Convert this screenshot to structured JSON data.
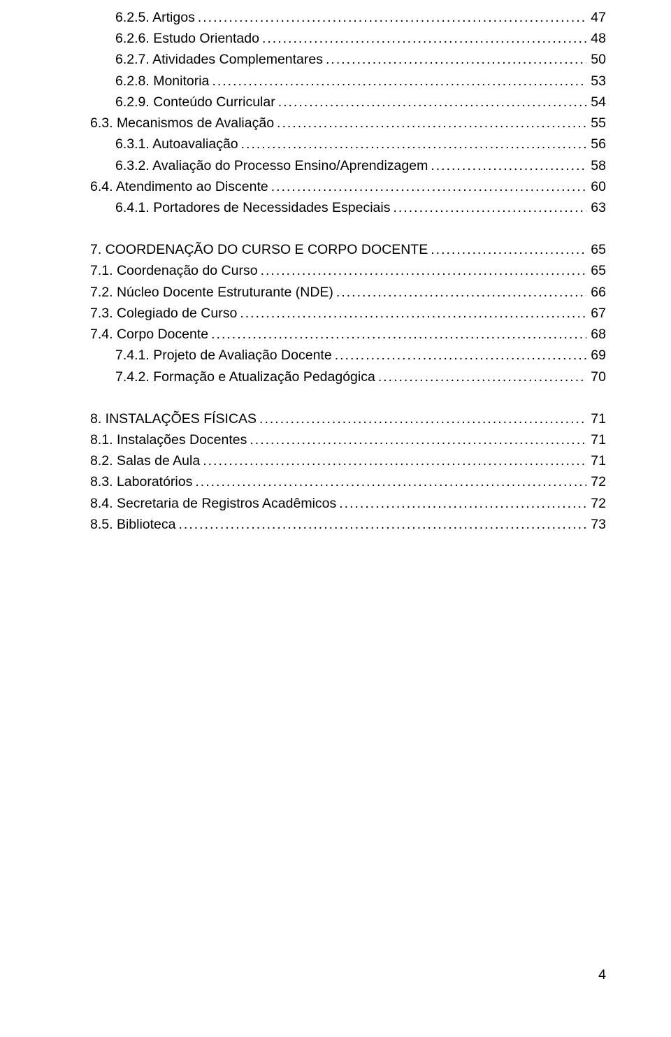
{
  "page_number": "4",
  "font_family": "Arial",
  "text_color": "#000000",
  "background_color": "#ffffff",
  "blocks": [
    {
      "rows": [
        {
          "label": "6.2.5. Artigos",
          "page": "47",
          "indent": 3
        },
        {
          "label": "6.2.6. Estudo Orientado",
          "page": "48",
          "indent": 3
        },
        {
          "label": "6.2.7. Atividades Complementares",
          "page": "50",
          "indent": 3
        },
        {
          "label": "6.2.8. Monitoria",
          "page": "53",
          "indent": 3
        },
        {
          "label": "6.2.9. Conteúdo Curricular",
          "page": "54",
          "indent": 3
        },
        {
          "label": "6.3. Mecanismos de Avaliação",
          "page": "55",
          "indent": 2
        },
        {
          "label": "6.3.1. Autoavaliação",
          "page": "56",
          "indent": 3
        },
        {
          "label": "6.3.2. Avaliação do Processo Ensino/Aprendizagem",
          "page": "58",
          "indent": 3
        },
        {
          "label": "6.4. Atendimento ao Discente",
          "page": "60",
          "indent": 2
        },
        {
          "label": "6.4.1. Portadores de Necessidades Especiais",
          "page": "63",
          "indent": 3
        }
      ]
    },
    {
      "rows": [
        {
          "label": "7. COORDENAÇÃO DO CURSO E CORPO DOCENTE",
          "page": "65",
          "indent": 1
        },
        {
          "label": "7.1. Coordenação do Curso",
          "page": "65",
          "indent": 2
        },
        {
          "label": "7.2. Núcleo Docente Estruturante (NDE)",
          "page": "66",
          "indent": 2
        },
        {
          "label": "7.3. Colegiado de Curso",
          "page": "67",
          "indent": 2
        },
        {
          "label": "7.4. Corpo Docente",
          "page": "68",
          "indent": 2
        },
        {
          "label": "7.4.1. Projeto de Avaliação Docente",
          "page": "69",
          "indent": 3
        },
        {
          "label": "7.4.2. Formação e Atualização Pedagógica",
          "page": "70",
          "indent": 3
        }
      ]
    },
    {
      "rows": [
        {
          "label": "8. INSTALAÇÕES FÍSICAS",
          "page": "71",
          "indent": 1
        },
        {
          "label": "8.1. Instalações Docentes",
          "page": "71",
          "indent": 2
        },
        {
          "label": "8.2. Salas de Aula",
          "page": "71",
          "indent": 2
        },
        {
          "label": "8.3. Laboratórios",
          "page": "72",
          "indent": 2
        },
        {
          "label": "8.4. Secretaria de Registros Acadêmicos",
          "page": "72",
          "indent": 2
        },
        {
          "label": "8.5. Biblioteca",
          "page": "73",
          "indent": 2
        }
      ]
    }
  ]
}
